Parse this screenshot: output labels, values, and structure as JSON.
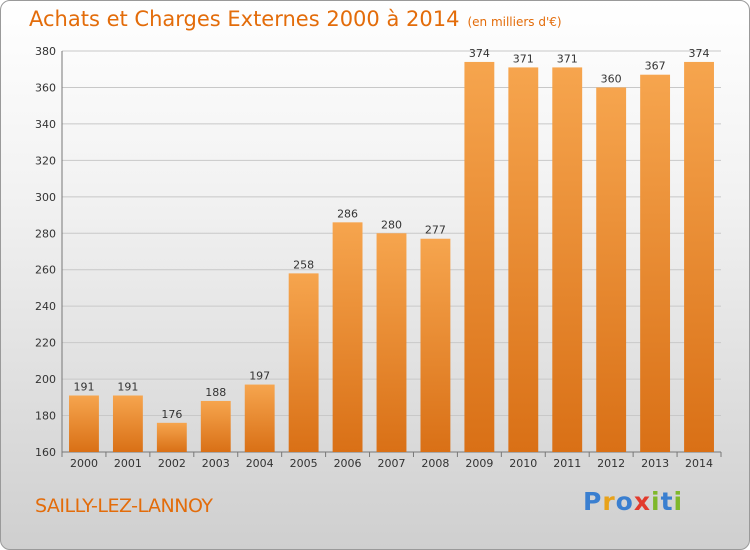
{
  "title": "Achats et Charges Externes 2000 à 2014",
  "unit": "(en milliers d'€)",
  "city": "SAILLY-LEZ-LANNOY",
  "logo": {
    "text": "Proxiti",
    "letters": [
      {
        "char": "P",
        "color": "#3a7fd0"
      },
      {
        "char": "r",
        "color": "#e8a21a"
      },
      {
        "char": "o",
        "color": "#3a7fd0"
      },
      {
        "char": "x",
        "color": "#e23a2c"
      },
      {
        "char": "i",
        "color": "#7fb82a"
      },
      {
        "char": "t",
        "color": "#3a7fd0"
      },
      {
        "char": "i",
        "color": "#7fb82a"
      }
    ]
  },
  "colors": {
    "accent": "#e36c0a",
    "bar_top": "#f6a54e",
    "bar_bottom": "#d97016",
    "grid": "#c8c8c8"
  },
  "chart_data": {
    "type": "bar",
    "categories": [
      "2000",
      "2001",
      "2002",
      "2003",
      "2004",
      "2005",
      "2006",
      "2007",
      "2008",
      "2009",
      "2010",
      "2011",
      "2012",
      "2013",
      "2014"
    ],
    "values": [
      191,
      191,
      176,
      188,
      197,
      258,
      286,
      280,
      277,
      374,
      371,
      371,
      360,
      367,
      374
    ],
    "ylim": [
      160,
      380
    ],
    "yticks": [
      160,
      180,
      200,
      220,
      240,
      260,
      280,
      300,
      320,
      340,
      360,
      380
    ],
    "grid": true
  }
}
